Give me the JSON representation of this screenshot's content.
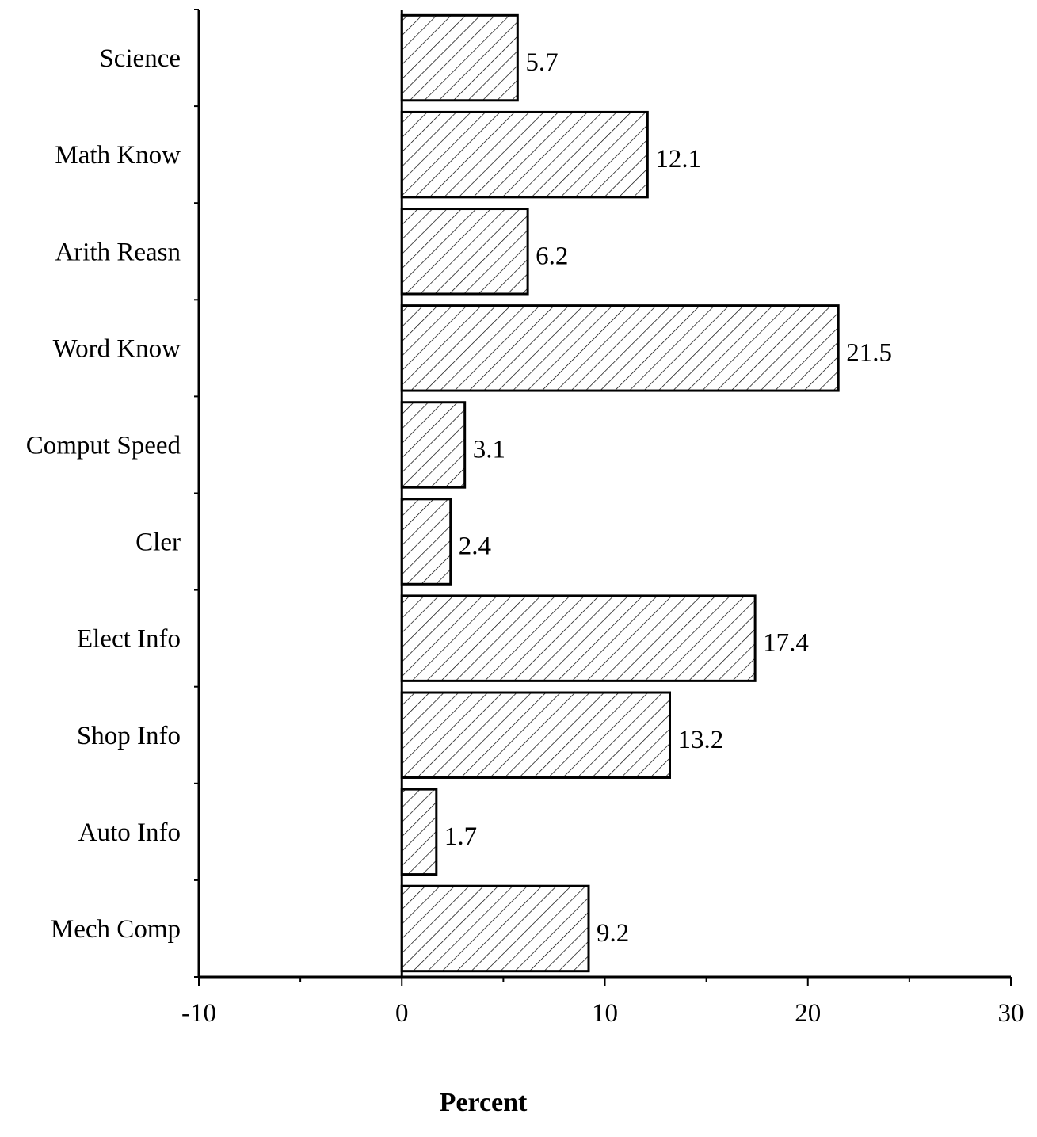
{
  "chart_data": {
    "type": "bar",
    "orientation": "horizontal",
    "categories": [
      "Science",
      "Math Know",
      "Arith Reasn",
      "Word Know",
      "Comput Speed",
      "Cler",
      "Elect Info",
      "Shop Info",
      "Auto Info",
      "Mech Comp"
    ],
    "values": [
      5.7,
      12.1,
      6.2,
      21.5,
      3.1,
      2.4,
      17.4,
      13.2,
      1.7,
      9.2
    ],
    "data_labels": [
      "5.7",
      "12.1",
      "6.2",
      "21.5",
      "3.1",
      "2.4",
      "17.4",
      "13.2",
      "1.7",
      "9.2"
    ],
    "xlabel": "Percent",
    "ylabel": "",
    "xlim": [
      -10,
      30
    ],
    "xticks": [
      -10,
      0,
      10,
      20,
      30
    ],
    "xtick_labels": [
      "-10",
      "0",
      "10",
      "20",
      "30"
    ],
    "bar_fill": "diagonal-hatch",
    "grid": false,
    "legend": "none",
    "colors": {
      "bar_stroke": "#000000",
      "hatch": "#000000",
      "background": "#ffffff"
    }
  }
}
